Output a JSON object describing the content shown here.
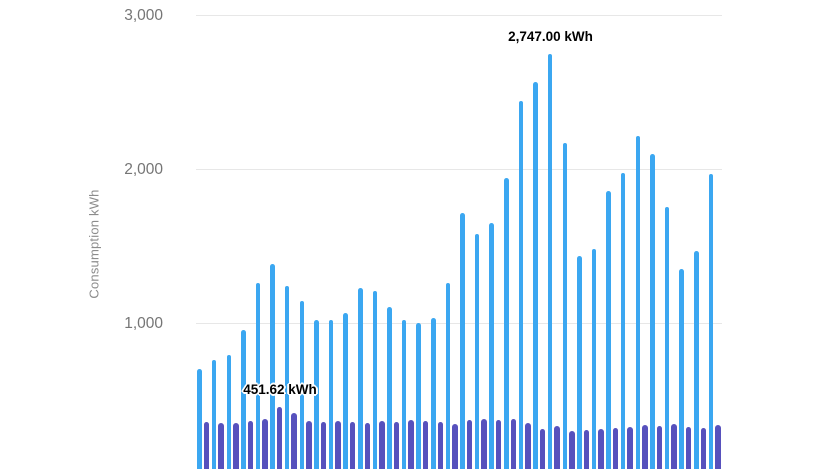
{
  "chart_data": {
    "type": "bar",
    "title": "",
    "xlabel": "",
    "ylabel": "Consumption kWh",
    "unit": "kWh",
    "ylim": [
      0,
      3000
    ],
    "grid": true,
    "legend_position": "none",
    "x_tick_labels_visible": false,
    "yticks": [
      {
        "value": 3000,
        "label": "3,000"
      },
      {
        "value": 2000,
        "label": "2,000"
      },
      {
        "value": 1000,
        "label": "1,000"
      }
    ],
    "series": [
      {
        "id": "consumption",
        "color": "#3BA7F1",
        "values": [
          700,
          760,
          795,
          955,
          1260,
          1385,
          1240,
          1145,
          1020,
          1020,
          1065,
          1225,
          1210,
          1105,
          1020,
          1000,
          1030,
          1260,
          1715,
          1580,
          1650,
          1940,
          2440,
          2565,
          2747,
          2170,
          1435,
          1480,
          1855,
          1975,
          2215,
          2100,
          1755,
          1350,
          1470,
          1965
        ]
      },
      {
        "id": "comparison",
        "color": "#5751BD",
        "values": [
          355,
          350,
          353,
          364,
          374,
          451.62,
          413,
          366,
          359,
          366,
          359,
          353,
          364,
          359,
          370,
          364,
          359,
          344,
          370,
          374,
          370,
          374,
          353,
          315,
          333,
          299,
          305,
          312,
          320,
          327,
          338,
          333,
          342,
          327,
          320,
          338
        ]
      }
    ],
    "annotations": [
      {
        "series": 0,
        "index": 24,
        "text": "2,747.00 kWh"
      },
      {
        "series": 1,
        "index": 5,
        "text": "451.62 kWh"
      }
    ]
  },
  "colors": {
    "background": "#ffffff",
    "gridline": "#e7e7e7",
    "tick_label": "#757575",
    "axis_title": "#8c8c8c",
    "annotation_text": "#000000"
  }
}
